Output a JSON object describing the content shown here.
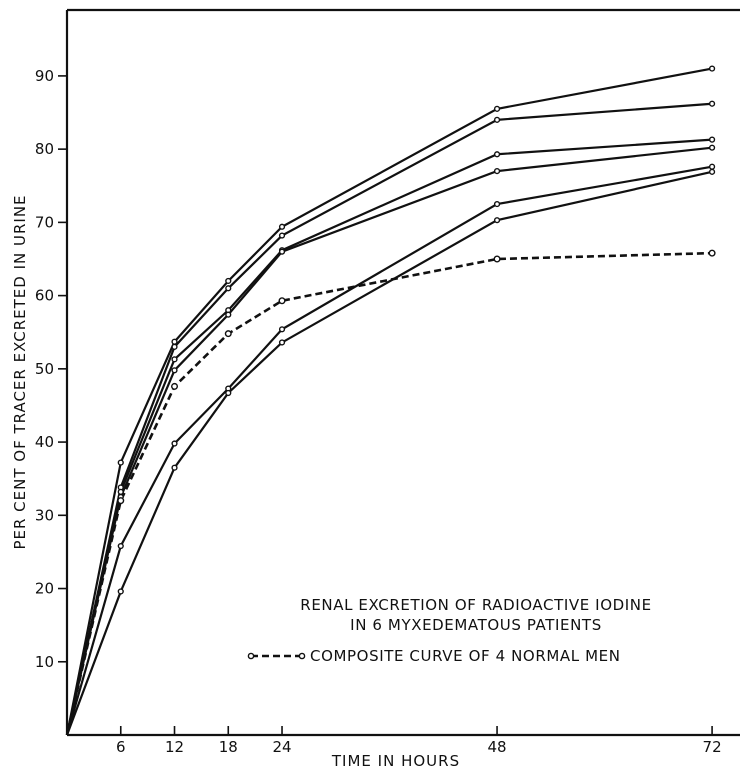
{
  "chart_data": {
    "type": "line",
    "xlabel": "TIME IN HOURS",
    "ylabel": "PER CENT OF TRACER EXCRETED IN URINE",
    "x": [
      0,
      6,
      12,
      18,
      24,
      48,
      72
    ],
    "xticks": [
      "6",
      "12",
      "18",
      "24",
      "48",
      "72"
    ],
    "yticks": [
      "10",
      "20",
      "30",
      "40",
      "50",
      "60",
      "70",
      "80",
      "90"
    ],
    "xlim": [
      0,
      74
    ],
    "ylim": [
      0,
      99
    ],
    "grid": false,
    "legend": {
      "title_line1": "RENAL EXCRETION OF RADIOACTIVE IODINE",
      "title_line2": "IN 6 MYXEDEMATOUS PATIENTS",
      "dashed_entry": "COMPOSITE CURVE OF 4 NORMAL MEN",
      "placement": "lower-right"
    },
    "series": [
      {
        "style": "solid",
        "values": [
          0,
          37.2,
          53.7,
          62.0,
          69.4,
          85.5,
          91.0
        ]
      },
      {
        "style": "solid",
        "values": [
          0,
          33.8,
          53.0,
          61.0,
          68.2,
          84.0,
          86.2
        ]
      },
      {
        "style": "solid",
        "values": [
          0,
          33.2,
          51.3,
          58.0,
          66.2,
          79.3,
          81.3
        ]
      },
      {
        "style": "solid",
        "values": [
          0,
          32.5,
          49.8,
          57.4,
          66.0,
          77.0,
          80.2
        ]
      },
      {
        "style": "solid",
        "values": [
          0,
          25.8,
          39.8,
          47.3,
          55.4,
          72.5,
          77.6
        ]
      },
      {
        "style": "solid",
        "values": [
          0,
          19.6,
          36.5,
          46.7,
          53.6,
          70.3,
          76.9
        ]
      },
      {
        "style": "dashed",
        "values": [
          0,
          32.0,
          47.6,
          54.8,
          59.3,
          65.0,
          65.8
        ]
      }
    ]
  }
}
